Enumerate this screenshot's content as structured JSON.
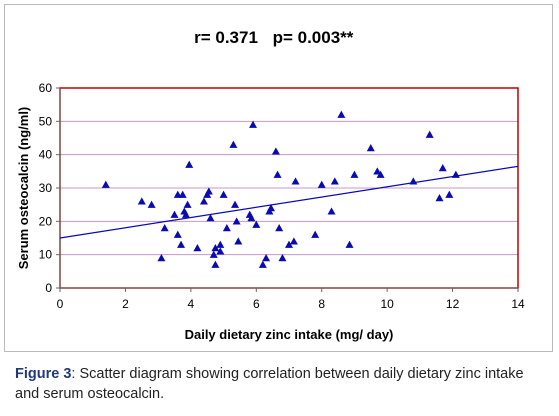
{
  "chart_data": {
    "type": "scatter",
    "annotation_r": "r= 0.371",
    "annotation_p": "p= 0.003**",
    "xlabel": "Daily dietary zinc intake (mg/ day)",
    "ylabel": "Serum osteocalcin  (ng/ml)",
    "xlim": [
      0,
      14
    ],
    "ylim": [
      0,
      60
    ],
    "xticks": [
      "0",
      "2",
      "4",
      "6",
      "8",
      "10",
      "12",
      "14"
    ],
    "yticks": [
      "0",
      "10",
      "20",
      "30",
      "40",
      "50",
      "60"
    ],
    "grid": "horizontal",
    "colors": {
      "points": "#0a0ab4",
      "trendline": "#0a0ab4",
      "plot_border": "#c00000",
      "gridlines": "#c896c8"
    },
    "trendline": {
      "x": [
        0,
        14
      ],
      "y": [
        15,
        36.5
      ]
    },
    "points": [
      {
        "x": 1.4,
        "y": 31
      },
      {
        "x": 2.5,
        "y": 26
      },
      {
        "x": 2.8,
        "y": 25
      },
      {
        "x": 3.1,
        "y": 9
      },
      {
        "x": 3.2,
        "y": 18
      },
      {
        "x": 3.5,
        "y": 22
      },
      {
        "x": 3.6,
        "y": 28
      },
      {
        "x": 3.6,
        "y": 16
      },
      {
        "x": 3.7,
        "y": 13
      },
      {
        "x": 3.75,
        "y": 28
      },
      {
        "x": 3.8,
        "y": 23
      },
      {
        "x": 3.85,
        "y": 22
      },
      {
        "x": 3.9,
        "y": 25
      },
      {
        "x": 3.95,
        "y": 37
      },
      {
        "x": 4.2,
        "y": 12
      },
      {
        "x": 4.4,
        "y": 26
      },
      {
        "x": 4.5,
        "y": 28
      },
      {
        "x": 4.55,
        "y": 29
      },
      {
        "x": 4.6,
        "y": 21
      },
      {
        "x": 4.7,
        "y": 10
      },
      {
        "x": 4.75,
        "y": 7
      },
      {
        "x": 4.75,
        "y": 12
      },
      {
        "x": 4.9,
        "y": 11
      },
      {
        "x": 4.9,
        "y": 13
      },
      {
        "x": 5.0,
        "y": 28
      },
      {
        "x": 5.1,
        "y": 18
      },
      {
        "x": 5.3,
        "y": 43
      },
      {
        "x": 5.35,
        "y": 25
      },
      {
        "x": 5.4,
        "y": 20
      },
      {
        "x": 5.45,
        "y": 14
      },
      {
        "x": 5.8,
        "y": 22
      },
      {
        "x": 5.85,
        "y": 21
      },
      {
        "x": 5.9,
        "y": 49
      },
      {
        "x": 6.0,
        "y": 19
      },
      {
        "x": 6.2,
        "y": 7
      },
      {
        "x": 6.3,
        "y": 9
      },
      {
        "x": 6.4,
        "y": 23
      },
      {
        "x": 6.45,
        "y": 24
      },
      {
        "x": 6.6,
        "y": 41
      },
      {
        "x": 6.65,
        "y": 34
      },
      {
        "x": 6.7,
        "y": 18
      },
      {
        "x": 6.8,
        "y": 9
      },
      {
        "x": 7.0,
        "y": 13
      },
      {
        "x": 7.15,
        "y": 14
      },
      {
        "x": 7.2,
        "y": 32
      },
      {
        "x": 7.8,
        "y": 16
      },
      {
        "x": 8.0,
        "y": 31
      },
      {
        "x": 8.3,
        "y": 23
      },
      {
        "x": 8.4,
        "y": 32
      },
      {
        "x": 8.6,
        "y": 52
      },
      {
        "x": 8.85,
        "y": 13
      },
      {
        "x": 9.0,
        "y": 34
      },
      {
        "x": 9.5,
        "y": 42
      },
      {
        "x": 9.7,
        "y": 35
      },
      {
        "x": 9.8,
        "y": 34
      },
      {
        "x": 10.8,
        "y": 32
      },
      {
        "x": 11.3,
        "y": 46
      },
      {
        "x": 11.6,
        "y": 27
      },
      {
        "x": 11.7,
        "y": 36
      },
      {
        "x": 11.9,
        "y": 28
      },
      {
        "x": 12.1,
        "y": 34
      }
    ]
  },
  "caption": {
    "label": "Figure 3",
    "colon": ":",
    "text": " Scatter diagram showing correlation between daily dietary zinc intake and serum osteocalcin."
  }
}
